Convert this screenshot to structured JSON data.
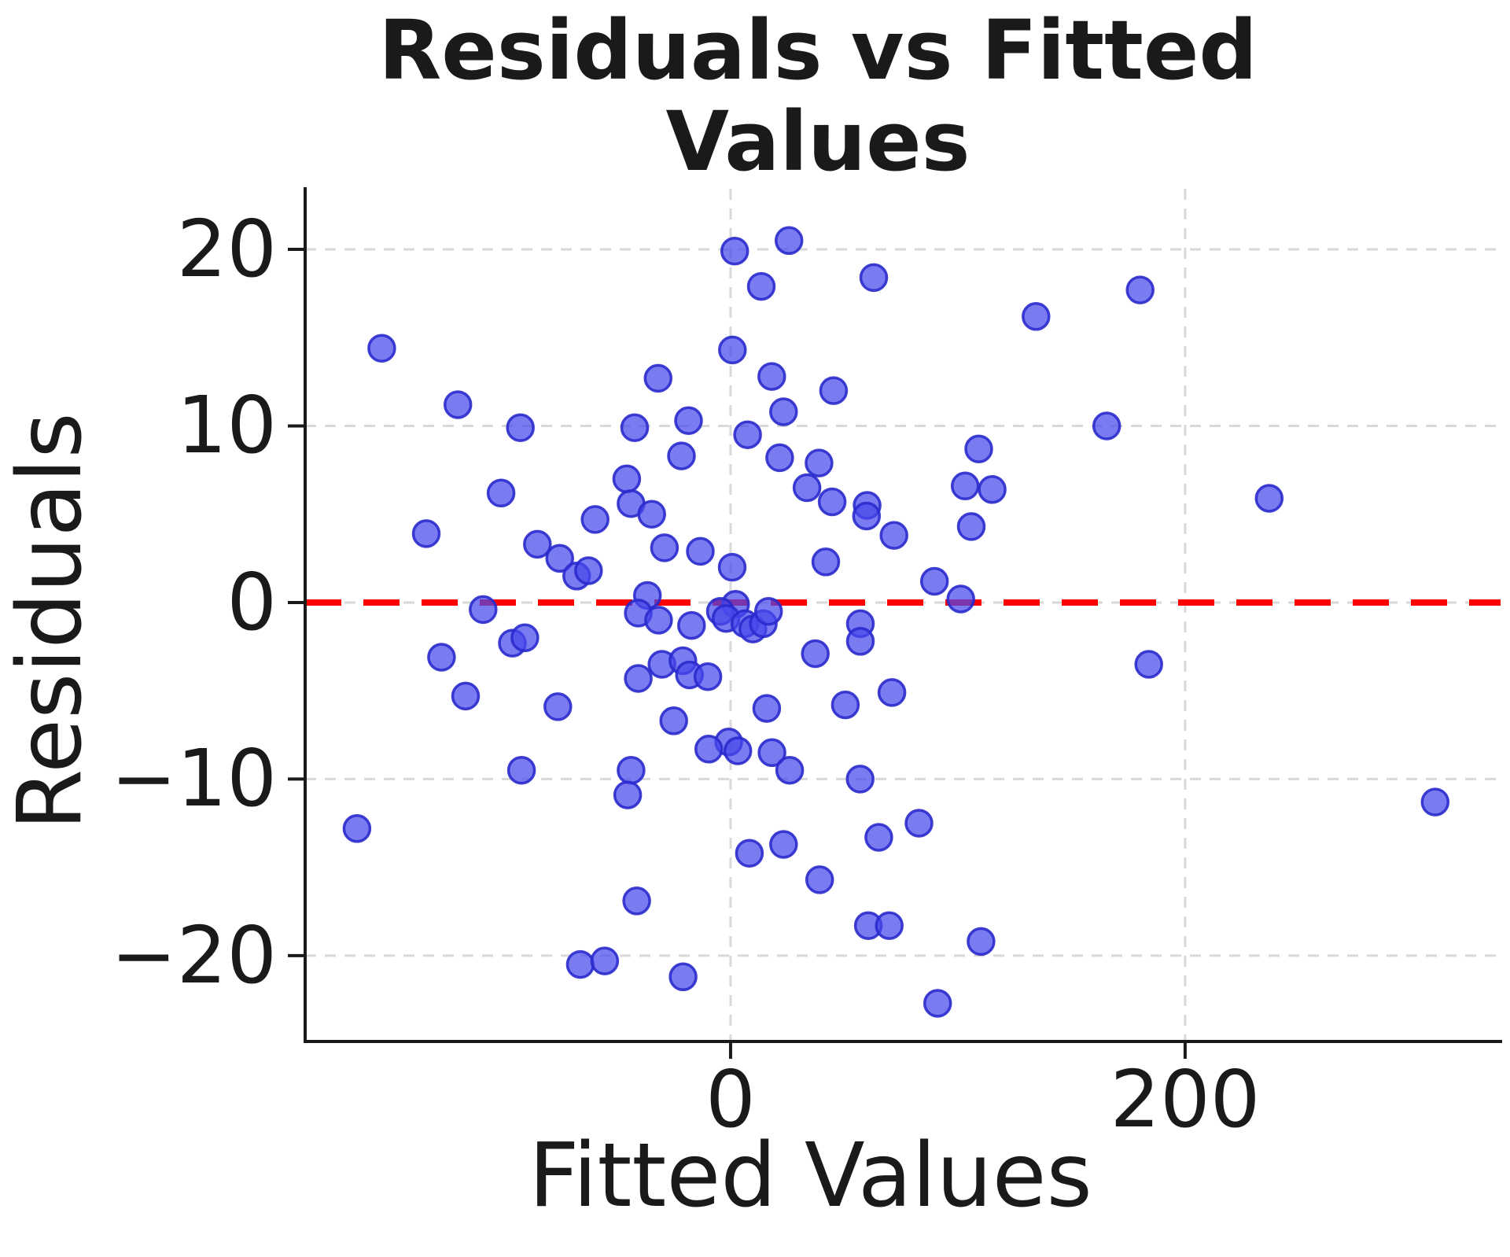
{
  "chart_data": {
    "type": "scatter",
    "title": "Residuals vs Fitted Values",
    "xlabel": "Fitted Values",
    "ylabel": "Residuals",
    "x_ticks": [
      {
        "v": 0,
        "label": "0"
      },
      {
        "v": 200,
        "label": "200"
      }
    ],
    "y_ticks": [
      {
        "v": 20,
        "label": "20"
      },
      {
        "v": 10,
        "label": "10"
      },
      {
        "v": 0,
        "label": "0"
      },
      {
        "v": -10,
        "label": "−10"
      },
      {
        "v": -20,
        "label": "−20"
      }
    ],
    "xlim": [
      -187.2,
      338.8
    ],
    "ylim": [
      -24.86,
      23.43
    ],
    "grid": true,
    "legend": "none",
    "ref_line": {
      "y": 0,
      "color": "#ff0000",
      "style": "dashed"
    },
    "colors": {
      "background": "#ffffff",
      "text": "#1a1a1a",
      "grid": "#d9d9d9",
      "spine": "#1a1a1a",
      "point_fill": "#4848eb",
      "point_edge": "#2a2acd",
      "ref_line": "#ff0000"
    },
    "marker": {
      "radius_px": 16.5,
      "fill_opacity": 0.72,
      "edge_width": 3.5
    },
    "points": [
      [
        -153.5,
        14.4
      ],
      [
        -120.0,
        11.2
      ],
      [
        -92.5,
        9.9
      ],
      [
        -42.2,
        9.9
      ],
      [
        -31.9,
        12.7
      ],
      [
        -18.5,
        10.3
      ],
      [
        1.8,
        19.9
      ],
      [
        25.7,
        20.5
      ],
      [
        13.5,
        17.9
      ],
      [
        63.0,
        18.4
      ],
      [
        134.4,
        16.2
      ],
      [
        0.8,
        14.3
      ],
      [
        18.1,
        12.8
      ],
      [
        45.3,
        12.0
      ],
      [
        23.3,
        10.8
      ],
      [
        7.5,
        9.5
      ],
      [
        109.2,
        8.7
      ],
      [
        180.2,
        17.7
      ],
      [
        165.5,
        10.0
      ],
      [
        237.0,
        5.9
      ],
      [
        21.6,
        8.2
      ],
      [
        38.9,
        7.9
      ],
      [
        -101.0,
        6.2
      ],
      [
        -45.7,
        7.0
      ],
      [
        -21.6,
        8.3
      ],
      [
        -43.8,
        5.6
      ],
      [
        -34.7,
        5.0
      ],
      [
        -59.6,
        4.7
      ],
      [
        -133.9,
        3.9
      ],
      [
        -85.0,
        3.3
      ],
      [
        -75.2,
        2.5
      ],
      [
        -67.7,
        1.5
      ],
      [
        -62.5,
        1.8
      ],
      [
        -29.1,
        3.1
      ],
      [
        -13.3,
        2.9
      ],
      [
        0.7,
        2.0
      ],
      [
        -36.6,
        0.4
      ],
      [
        33.6,
        6.5
      ],
      [
        44.7,
        5.7
      ],
      [
        60.1,
        5.5
      ],
      [
        59.8,
        4.9
      ],
      [
        71.9,
        3.8
      ],
      [
        103.2,
        6.6
      ],
      [
        115.1,
        6.4
      ],
      [
        105.9,
        4.3
      ],
      [
        41.9,
        2.3
      ],
      [
        89.7,
        1.2
      ],
      [
        101.3,
        0.2
      ],
      [
        2.2,
        -0.1
      ],
      [
        -4.5,
        -0.5
      ],
      [
        -2.0,
        -0.9
      ],
      [
        6.3,
        -1.2
      ],
      [
        9.8,
        -1.5
      ],
      [
        14.4,
        -1.2
      ],
      [
        16.7,
        -0.5
      ],
      [
        -17.2,
        -1.3
      ],
      [
        -108.9,
        -0.4
      ],
      [
        -40.6,
        -0.6
      ],
      [
        -31.7,
        -1.0
      ],
      [
        57.1,
        -1.2
      ],
      [
        57.1,
        -2.2
      ],
      [
        37.3,
        -2.9
      ],
      [
        -96.0,
        -2.3
      ],
      [
        -90.5,
        -2.0
      ],
      [
        -127.2,
        -3.1
      ],
      [
        -30.2,
        -3.5
      ],
      [
        -21.0,
        -3.3
      ],
      [
        -18.1,
        -4.1
      ],
      [
        -40.6,
        -4.3
      ],
      [
        -10.0,
        -4.2
      ],
      [
        184.0,
        -3.5
      ],
      [
        -116.6,
        -5.3
      ],
      [
        -76.0,
        -5.9
      ],
      [
        -25.0,
        -6.7
      ],
      [
        15.9,
        -6.0
      ],
      [
        50.5,
        -5.8
      ],
      [
        71.0,
        -5.1
      ],
      [
        -0.8,
        -7.9
      ],
      [
        3.2,
        -8.4
      ],
      [
        18.2,
        -8.5
      ],
      [
        -9.6,
        -8.3
      ],
      [
        26.0,
        -9.5
      ],
      [
        -92.0,
        -9.5
      ],
      [
        -43.8,
        -9.5
      ],
      [
        57.0,
        -10.0
      ],
      [
        -45.3,
        -10.9
      ],
      [
        -164.4,
        -12.8
      ],
      [
        82.9,
        -12.5
      ],
      [
        65.2,
        -13.3
      ],
      [
        23.3,
        -13.7
      ],
      [
        8.3,
        -14.2
      ],
      [
        -41.3,
        -16.9
      ],
      [
        39.2,
        -15.7
      ],
      [
        -66.1,
        -20.5
      ],
      [
        -55.4,
        -20.3
      ],
      [
        -20.9,
        -21.2
      ],
      [
        60.6,
        -18.3
      ],
      [
        69.8,
        -18.3
      ],
      [
        110.2,
        -19.2
      ],
      [
        91.1,
        -22.7
      ],
      [
        310.0,
        -11.3
      ]
    ]
  }
}
